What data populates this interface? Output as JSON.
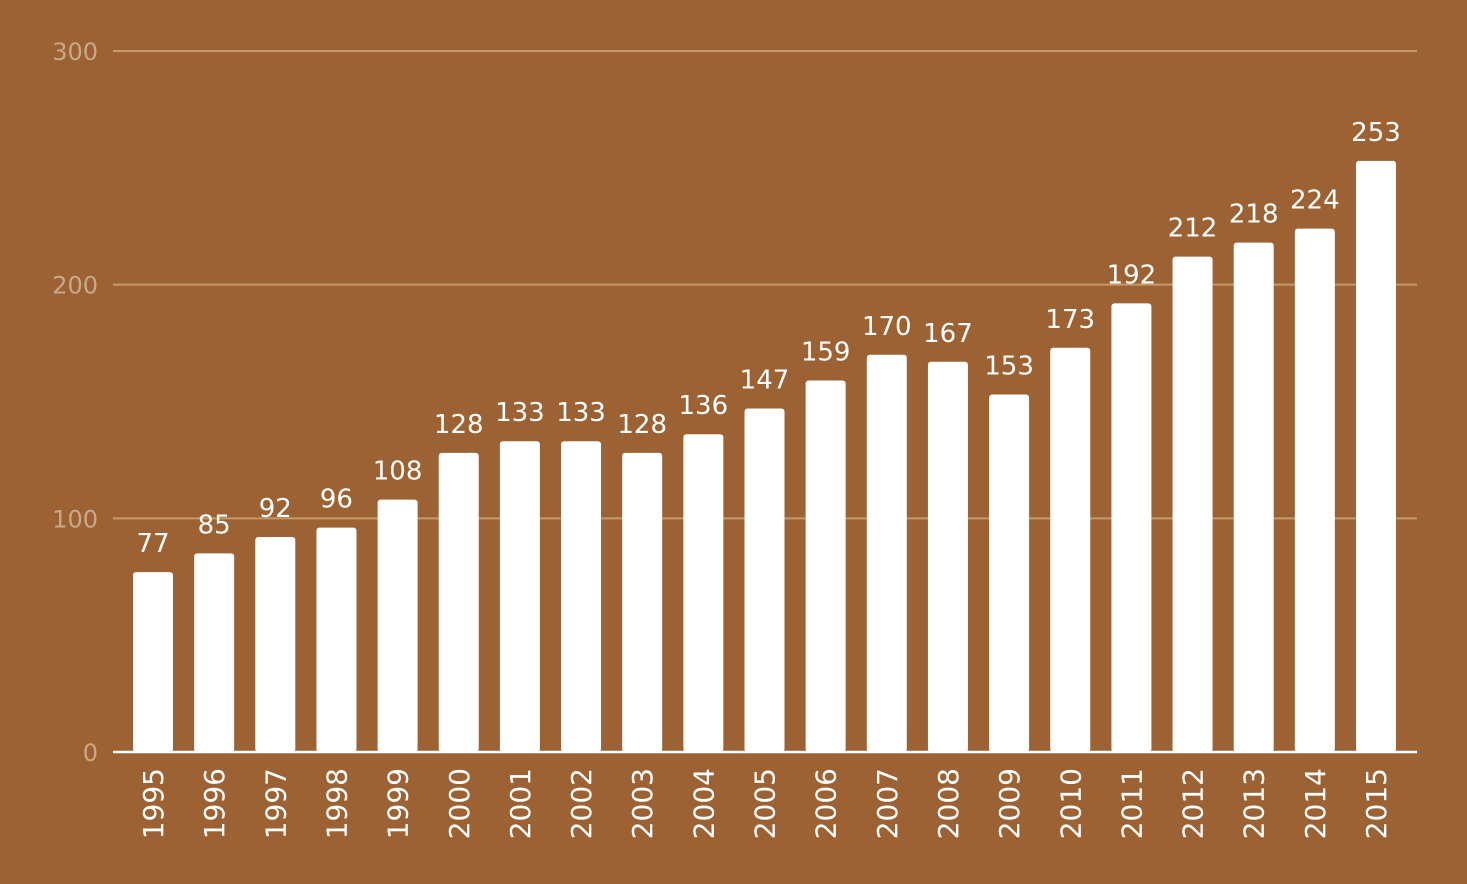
{
  "chart_data": {
    "type": "bar",
    "categories": [
      "1995",
      "1996",
      "1997",
      "1998",
      "1999",
      "2000",
      "2001",
      "2002",
      "2003",
      "2004",
      "2005",
      "2006",
      "2007",
      "2008",
      "2009",
      "2010",
      "2011",
      "2012",
      "2013",
      "2014",
      "2015"
    ],
    "values": [
      77,
      85,
      92,
      96,
      108,
      128,
      133,
      133,
      128,
      136,
      147,
      159,
      170,
      167,
      153,
      173,
      192,
      212,
      218,
      224,
      253
    ],
    "title": "",
    "xlabel": "",
    "ylabel": "",
    "ylim": [
      0,
      300
    ],
    "yticks": [
      0,
      100,
      200,
      300
    ],
    "grid": true,
    "legend": "none",
    "colors": {
      "background": "#9c6233",
      "bar": "#ffffff",
      "gridline": "#c49a6c",
      "axis": "#ffffff",
      "tick_label": "#c9a88a",
      "value_label": "#ffffff",
      "category_label": "#ffffff"
    }
  }
}
